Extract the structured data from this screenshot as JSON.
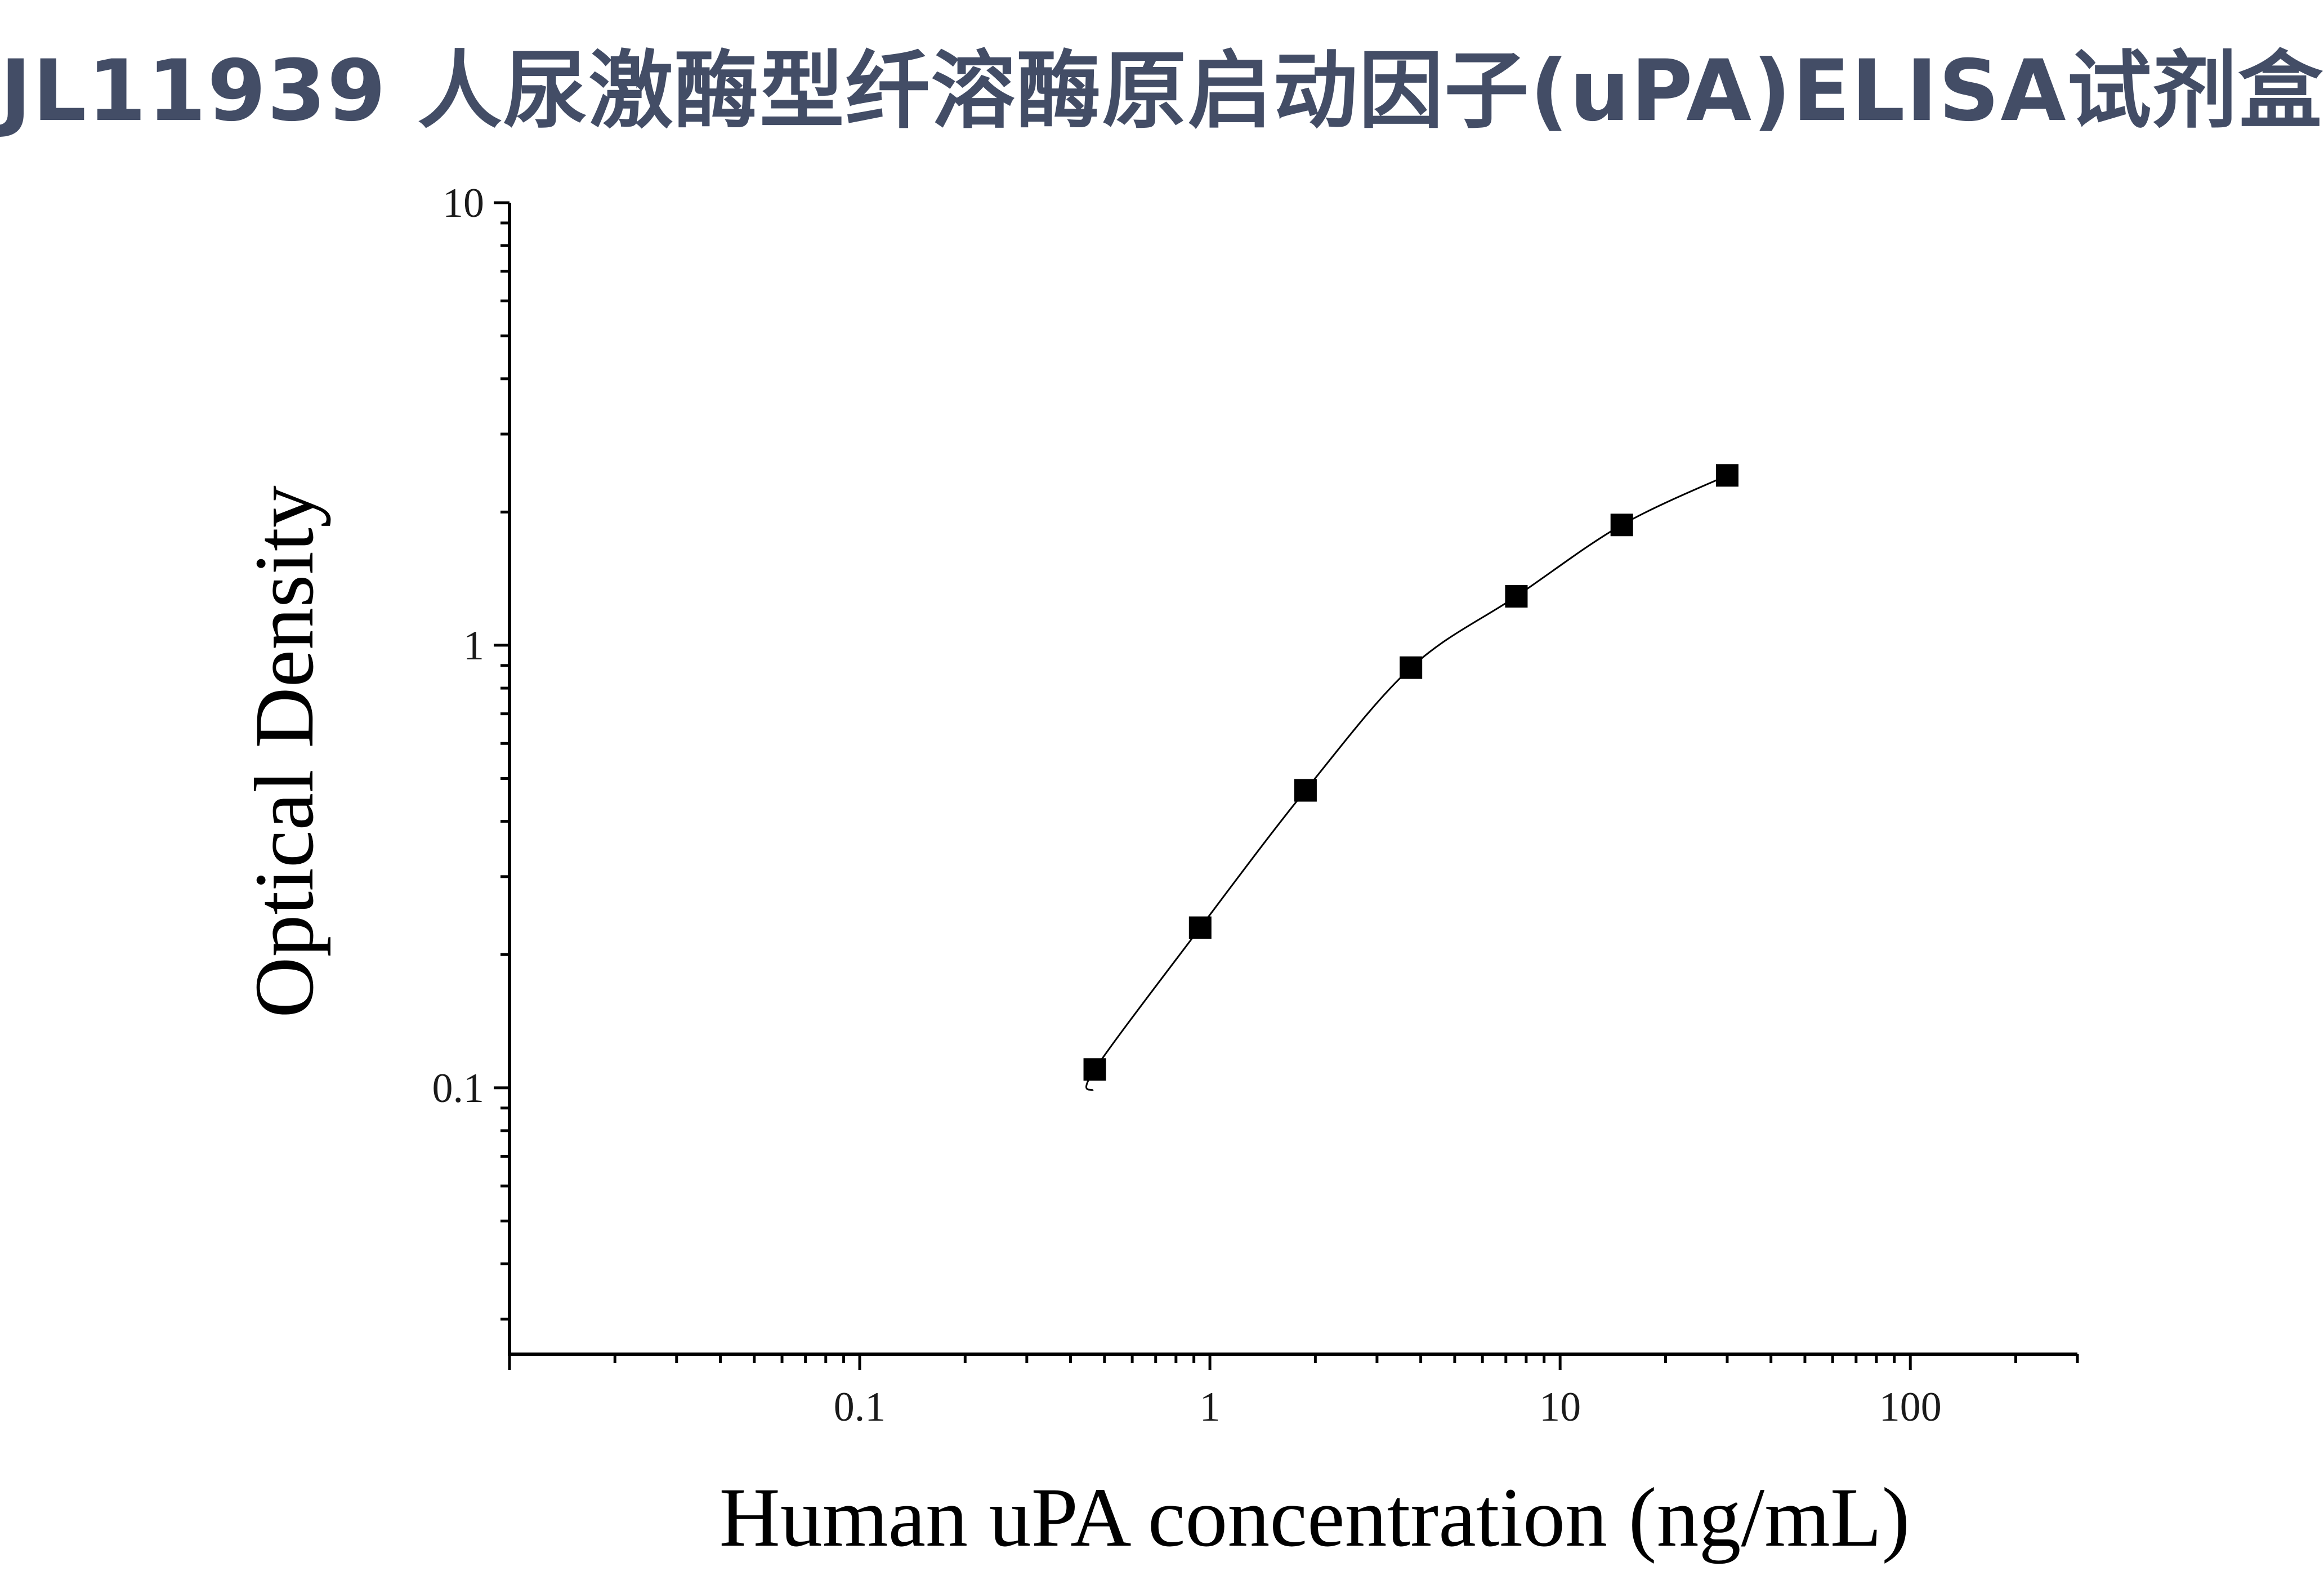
{
  "title": "JL11939 人尿激酶型纤溶酶原启动因子(uPA)ELISA试剂盒",
  "chart_data": {
    "type": "scatter",
    "xlabel": "Human uPA concentration (ng/mL)",
    "ylabel": "Optical Density",
    "xscale": "log",
    "yscale": "log",
    "xlim": [
      0.01,
      300
    ],
    "ylim": [
      0.025,
      10
    ],
    "x_ticks": [
      {
        "value": 0.1,
        "label": "0.1"
      },
      {
        "value": 1,
        "label": "1"
      },
      {
        "value": 10,
        "label": "10"
      },
      {
        "value": 100,
        "label": "100"
      }
    ],
    "y_ticks": [
      {
        "value": 0.1,
        "label": "0.1"
      },
      {
        "value": 1,
        "label": "1"
      },
      {
        "value": 10,
        "label": "10"
      }
    ],
    "series": [
      {
        "x": [
          0.469,
          0.938,
          1.875,
          3.75,
          7.5,
          15,
          30
        ],
        "y": [
          0.11,
          0.23,
          0.47,
          0.89,
          1.29,
          1.87,
          2.42
        ]
      }
    ],
    "fit_curve": true,
    "grid": false,
    "marker_color": "#000000"
  }
}
